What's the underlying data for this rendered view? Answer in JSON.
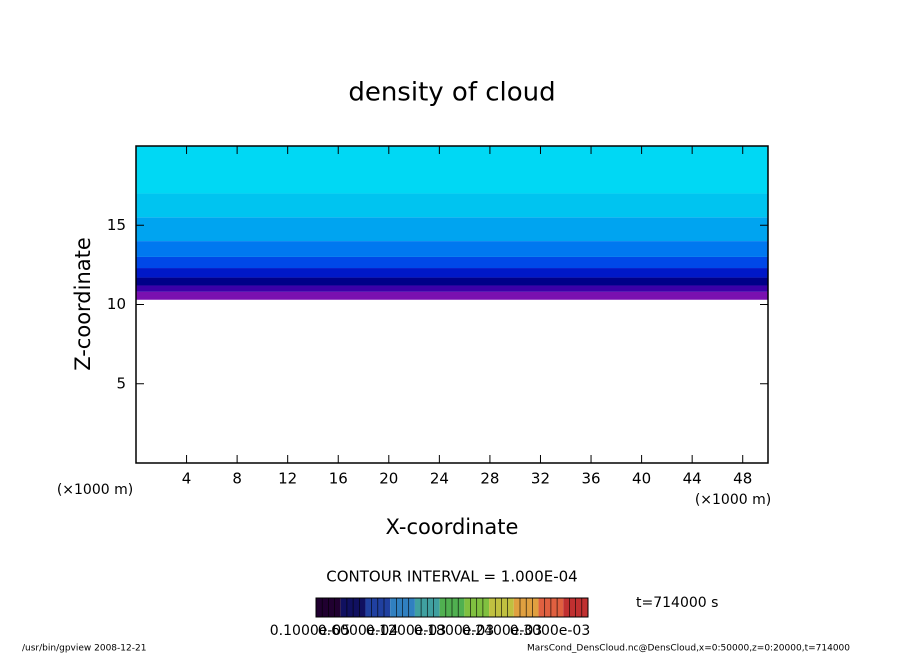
{
  "chart_data": {
    "type": "contour",
    "title": "density of cloud",
    "x_label": "X-coordinate",
    "y_label": "Z-coordinate",
    "x_unit_left": "(×1000 m)",
    "x_unit_right": "(×1000 m)",
    "xlim": [
      0,
      50
    ],
    "xticks": [
      4,
      8,
      12,
      16,
      20,
      24,
      28,
      32,
      36,
      40,
      44,
      48
    ],
    "ylim": [
      0,
      20
    ],
    "yticks": [
      5,
      10,
      15
    ],
    "layers": {
      "z": [
        10.3,
        10.8,
        11.2,
        11.7,
        12.3,
        13,
        14,
        15.5,
        17,
        20
      ],
      "colors": [
        "#7a10b0",
        "#3c00a8",
        "#000088",
        "#0018c8",
        "#0048e8",
        "#0078f0",
        "#00a4f0",
        "#00c4f0",
        "#00d8f4"
      ]
    },
    "contour_interval": "CONTOUR INTERVAL = 1.000E-04",
    "time_label": "t=714000 s",
    "colorbar": {
      "colors": [
        "#200030",
        "#101060",
        "#2040a0",
        "#3080c0",
        "#40a0a0",
        "#50b050",
        "#80c040",
        "#c0c040",
        "#e0a040",
        "#e06040",
        "#c03030"
      ],
      "labels": [
        "0.1000e-05",
        "0.6000e-04",
        "0.1200e-03",
        "0.1800e-03",
        "0.2400e-03",
        "0.3000e-03"
      ]
    },
    "footer_left": "/usr/bin/gpview   2008-12-21",
    "footer_right": "MarsCond_DensCloud.nc@DensCloud,x=0:50000,z=0:20000,t=714000"
  }
}
